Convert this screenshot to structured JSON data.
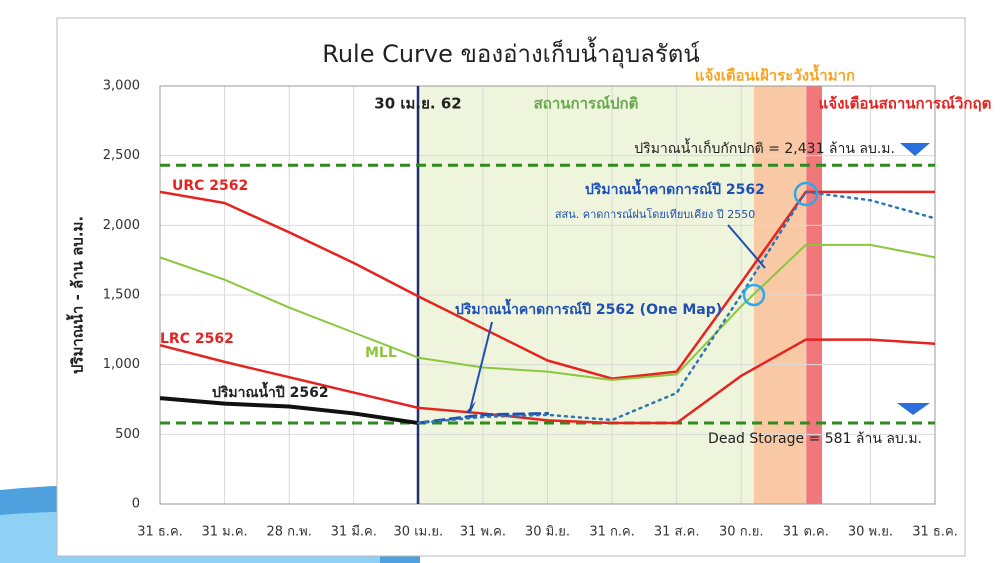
{
  "chart_data": {
    "type": "line",
    "title": "Rule Curve ของอ่างเก็บน้ำอุบลรัตน์",
    "y_label": "ปริมาณน้ำ - ล้าน ลบ.ม.",
    "categories": [
      "31 ธ.ค.",
      "31 ม.ค.",
      "28 ก.พ.",
      "31 มี.ค.",
      "30 เม.ย.",
      "31 พ.ค.",
      "30 มิ.ย.",
      "31 ก.ค.",
      "31 ส.ค.",
      "30 ก.ย.",
      "31 ต.ค.",
      "30 พ.ย.",
      "31 ธ.ค."
    ],
    "ylim": [
      0,
      3000
    ],
    "yticks": [
      0,
      500,
      {
        "value": 1000,
        "label": "1,000"
      },
      {
        "value": 1500,
        "label": "1,500"
      },
      {
        "value": 2000,
        "label": "2,000"
      },
      {
        "value": 2500,
        "label": "2,500"
      },
      {
        "value": 3000,
        "label": "3,000"
      }
    ],
    "grid": true,
    "series": [
      {
        "name": "URC 2562",
        "color": "#e52421",
        "style": "solid",
        "width": 2.5,
        "values": [
          2240,
          2160,
          1950,
          1730,
          1490,
          1260,
          1030,
          900,
          950,
          1590,
          2240,
          2240,
          2240
        ]
      },
      {
        "name": "MLL",
        "color": "#8cc63f",
        "style": "solid",
        "width": 2,
        "values": [
          1770,
          1610,
          1410,
          1230,
          1050,
          980,
          950,
          890,
          930,
          1420,
          1860,
          1860,
          1770
        ]
      },
      {
        "name": "LRC 2562",
        "color": "#e52421",
        "style": "solid",
        "width": 2.5,
        "values": [
          1140,
          1020,
          910,
          800,
          690,
          650,
          600,
          581,
          581,
          920,
          1180,
          1180,
          1150
        ]
      },
      {
        "name": "ปริมาณน้ำปี 2562",
        "color": "#111111",
        "style": "solid",
        "width": 4,
        "values": [
          760,
          720,
          700,
          650,
          581,
          null,
          null,
          null,
          null,
          null,
          null,
          null,
          null
        ]
      },
      {
        "name": "ปริมาณน้ำคาดการณ์ปี 2562 (One Map)",
        "color": "#1f4fb4",
        "style": "dashed",
        "width": 3,
        "values": [
          null,
          null,
          null,
          null,
          581,
          640,
          650,
          null,
          null,
          null,
          null,
          null,
          null
        ]
      },
      {
        "name": "ปริมาณน้ำคาดการณ์ปี 2562",
        "color": "#2e75b6",
        "style": "dotted",
        "width": 2.5,
        "values": [
          null,
          null,
          null,
          null,
          581,
          625,
          640,
          603,
          797,
          1500,
          2240,
          2180,
          2050
        ]
      }
    ],
    "reference_lines": [
      {
        "value": 2431,
        "label": "ปริมาณน้ำเก็บกักปกติ = 2,431 ล้าน ลบ.ม."
      },
      {
        "value": 581,
        "label": "Dead Storage = 581 ล้าน ลบ.ม."
      }
    ],
    "annotations": [
      "30 เม.ย. 62",
      "สถานการณ์ปกติ",
      "แจ้งเตือนเฝ้าระวังน้ำมาก",
      "แจ้งเตือนสถานการณ์วิกฤต",
      "สสน. คาดการณ์ฝนโดยเทียบเคียง ปี 2550"
    ]
  }
}
